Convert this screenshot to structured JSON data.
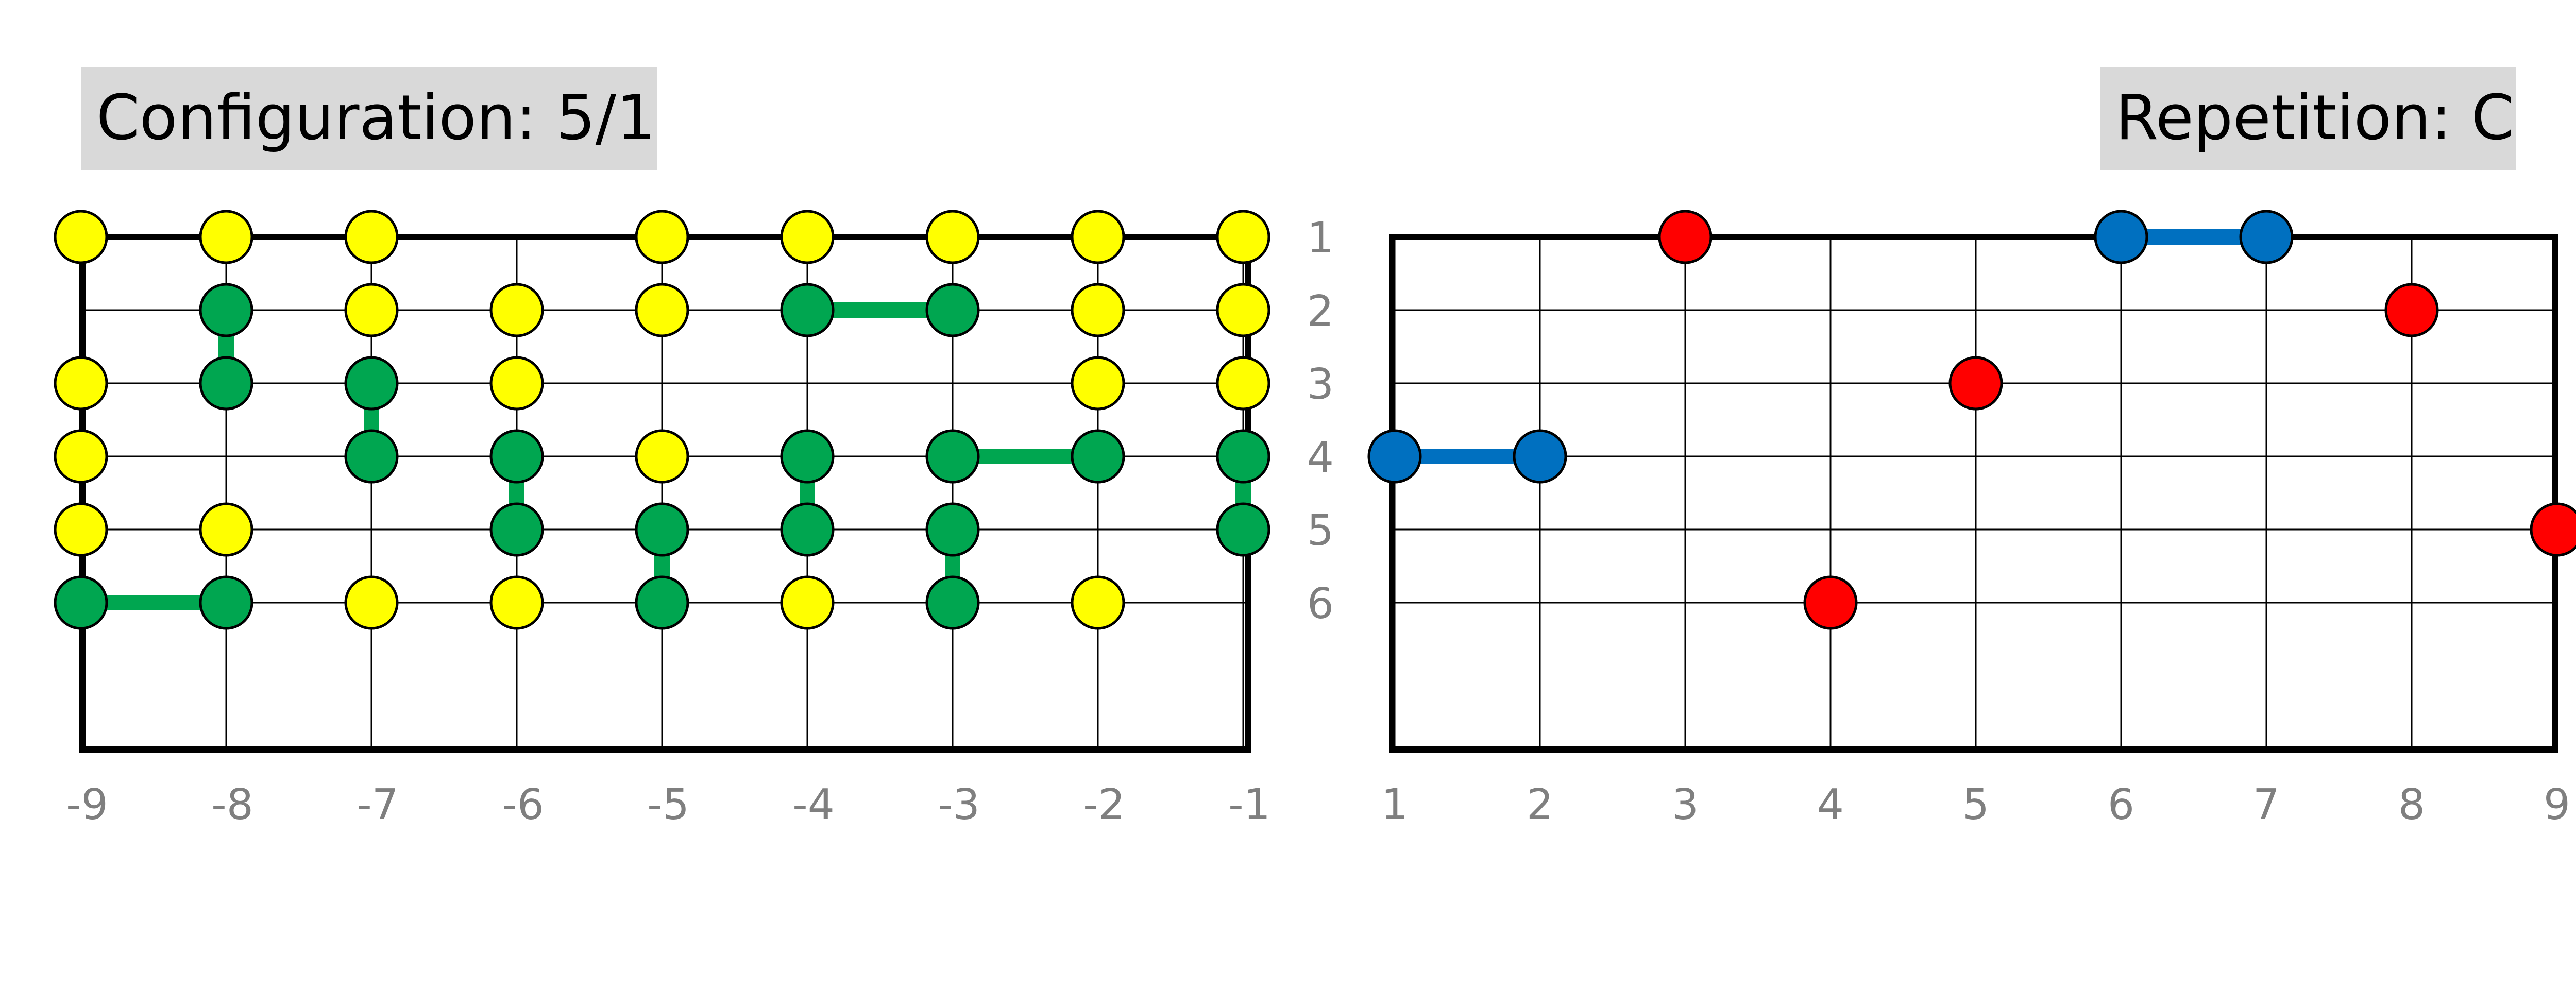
{
  "configuration": {
    "label": "Configuration: 5/1"
  },
  "repetition": {
    "label": "Repetition: C"
  },
  "colors": {
    "yellow": "#ffff00",
    "green": "#00a650",
    "red": "#ff0000",
    "blue": "#0070c0",
    "grid": "#000000",
    "tick": "#7f7f7f"
  },
  "left_grid": {
    "columns": [
      "-9",
      "-8",
      "-7",
      "-6",
      "-5",
      "-4",
      "-3",
      "-2",
      "-1"
    ],
    "rows": [
      "1",
      "2",
      "3",
      "4",
      "5",
      "6"
    ],
    "nodes": [
      {
        "col": 1,
        "row": 1,
        "color": "yellow"
      },
      {
        "col": 2,
        "row": 1,
        "color": "yellow"
      },
      {
        "col": 3,
        "row": 1,
        "color": "yellow"
      },
      {
        "col": 5,
        "row": 1,
        "color": "yellow"
      },
      {
        "col": 6,
        "row": 1,
        "color": "yellow"
      },
      {
        "col": 7,
        "row": 1,
        "color": "yellow"
      },
      {
        "col": 8,
        "row": 1,
        "color": "yellow"
      },
      {
        "col": 9,
        "row": 1,
        "color": "yellow"
      },
      {
        "col": 2,
        "row": 2,
        "color": "green"
      },
      {
        "col": 3,
        "row": 2,
        "color": "yellow"
      },
      {
        "col": 4,
        "row": 2,
        "color": "yellow"
      },
      {
        "col": 5,
        "row": 2,
        "color": "yellow"
      },
      {
        "col": 6,
        "row": 2,
        "color": "green"
      },
      {
        "col": 7,
        "row": 2,
        "color": "green"
      },
      {
        "col": 8,
        "row": 2,
        "color": "yellow"
      },
      {
        "col": 9,
        "row": 2,
        "color": "yellow"
      },
      {
        "col": 1,
        "row": 3,
        "color": "yellow"
      },
      {
        "col": 2,
        "row": 3,
        "color": "green"
      },
      {
        "col": 3,
        "row": 3,
        "color": "green"
      },
      {
        "col": 4,
        "row": 3,
        "color": "yellow"
      },
      {
        "col": 8,
        "row": 3,
        "color": "yellow"
      },
      {
        "col": 9,
        "row": 3,
        "color": "yellow"
      },
      {
        "col": 1,
        "row": 4,
        "color": "yellow"
      },
      {
        "col": 3,
        "row": 4,
        "color": "green"
      },
      {
        "col": 4,
        "row": 4,
        "color": "green"
      },
      {
        "col": 5,
        "row": 4,
        "color": "yellow"
      },
      {
        "col": 6,
        "row": 4,
        "color": "green"
      },
      {
        "col": 7,
        "row": 4,
        "color": "green"
      },
      {
        "col": 8,
        "row": 4,
        "color": "green"
      },
      {
        "col": 9,
        "row": 4,
        "color": "green"
      },
      {
        "col": 1,
        "row": 5,
        "color": "yellow"
      },
      {
        "col": 2,
        "row": 5,
        "color": "yellow"
      },
      {
        "col": 4,
        "row": 5,
        "color": "green"
      },
      {
        "col": 5,
        "row": 5,
        "color": "green"
      },
      {
        "col": 6,
        "row": 5,
        "color": "green"
      },
      {
        "col": 7,
        "row": 5,
        "color": "green"
      },
      {
        "col": 9,
        "row": 5,
        "color": "green"
      },
      {
        "col": 1,
        "row": 6,
        "color": "green"
      },
      {
        "col": 2,
        "row": 6,
        "color": "green"
      },
      {
        "col": 3,
        "row": 6,
        "color": "yellow"
      },
      {
        "col": 4,
        "row": 6,
        "color": "yellow"
      },
      {
        "col": 5,
        "row": 6,
        "color": "green"
      },
      {
        "col": 6,
        "row": 6,
        "color": "yellow"
      },
      {
        "col": 7,
        "row": 6,
        "color": "green"
      },
      {
        "col": 8,
        "row": 6,
        "color": "yellow"
      }
    ],
    "links": [
      {
        "from": [
          2,
          2
        ],
        "to": [
          2,
          3
        ]
      },
      {
        "from": [
          6,
          2
        ],
        "to": [
          7,
          2
        ]
      },
      {
        "from": [
          3,
          3
        ],
        "to": [
          3,
          4
        ]
      },
      {
        "from": [
          7,
          4
        ],
        "to": [
          8,
          4
        ]
      },
      {
        "from": [
          9,
          4
        ],
        "to": [
          9,
          5
        ]
      },
      {
        "from": [
          4,
          4
        ],
        "to": [
          4,
          5
        ]
      },
      {
        "from": [
          6,
          4
        ],
        "to": [
          6,
          5
        ]
      },
      {
        "from": [
          5,
          5
        ],
        "to": [
          5,
          6
        ]
      },
      {
        "from": [
          7,
          5
        ],
        "to": [
          7,
          6
        ]
      },
      {
        "from": [
          1,
          6
        ],
        "to": [
          2,
          6
        ]
      }
    ]
  },
  "right_grid": {
    "columns": [
      "1",
      "2",
      "3",
      "4",
      "5",
      "6",
      "7",
      "8",
      "9"
    ],
    "nodes": [
      {
        "col": 3,
        "row": 1,
        "color": "red"
      },
      {
        "col": 6,
        "row": 1,
        "color": "blue"
      },
      {
        "col": 7,
        "row": 1,
        "color": "blue"
      },
      {
        "col": 8,
        "row": 2,
        "color": "red"
      },
      {
        "col": 5,
        "row": 3,
        "color": "red"
      },
      {
        "col": 1,
        "row": 4,
        "color": "blue"
      },
      {
        "col": 2,
        "row": 4,
        "color": "blue"
      },
      {
        "col": 9,
        "row": 5,
        "color": "red"
      },
      {
        "col": 4,
        "row": 6,
        "color": "red"
      }
    ],
    "links": [
      {
        "from": [
          6,
          1
        ],
        "to": [
          7,
          1
        ]
      },
      {
        "from": [
          1,
          4
        ],
        "to": [
          2,
          4
        ]
      }
    ]
  }
}
